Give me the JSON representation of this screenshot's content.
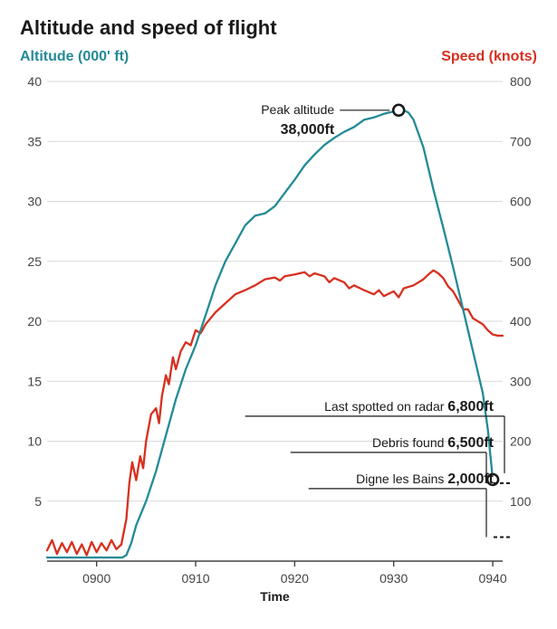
{
  "title": "Altitude and speed of flight",
  "axes": {
    "left": {
      "label": "Altitude (000' ft)",
      "color": "#238a97",
      "range": [
        0,
        40
      ],
      "ticks": [
        5,
        10,
        15,
        20,
        25,
        30,
        35,
        40
      ]
    },
    "right": {
      "label": "Speed (knots)",
      "color": "#d7301f",
      "range": [
        0,
        800
      ],
      "ticks": [
        100,
        200,
        300,
        400,
        500,
        600,
        700,
        800
      ]
    },
    "x": {
      "label": "Time",
      "range": [
        895,
        941
      ],
      "ticks": [
        900,
        910,
        920,
        930,
        940
      ],
      "tick_labels": [
        "0900",
        "0910",
        "0920",
        "0930",
        "0940"
      ]
    }
  },
  "grid_color": "#d9d9d9",
  "zero_line_color": "#444444",
  "background_color": "#ffffff",
  "line_width": 2.3,
  "series": {
    "altitude": {
      "color": "#238a97",
      "data": [
        [
          895,
          0.3
        ],
        [
          896,
          0.3
        ],
        [
          897,
          0.3
        ],
        [
          898,
          0.3
        ],
        [
          899,
          0.3
        ],
        [
          900,
          0.3
        ],
        [
          901,
          0.3
        ],
        [
          902,
          0.3
        ],
        [
          902.6,
          0.3
        ],
        [
          903,
          0.5
        ],
        [
          903.5,
          1.5
        ],
        [
          904,
          3.0
        ],
        [
          905,
          5.0
        ],
        [
          906,
          7.5
        ],
        [
          907,
          10.5
        ],
        [
          908,
          13.5
        ],
        [
          909,
          16.0
        ],
        [
          910,
          18.0
        ],
        [
          911,
          20.5
        ],
        [
          912,
          23.0
        ],
        [
          913,
          25.0
        ],
        [
          914,
          26.5
        ],
        [
          915,
          28.0
        ],
        [
          916,
          28.8
        ],
        [
          917,
          29.0
        ],
        [
          918,
          29.6
        ],
        [
          919,
          30.7
        ],
        [
          920,
          31.8
        ],
        [
          921,
          33.0
        ],
        [
          922,
          33.9
        ],
        [
          923,
          34.7
        ],
        [
          924,
          35.3
        ],
        [
          925,
          35.8
        ],
        [
          926,
          36.2
        ],
        [
          927,
          36.8
        ],
        [
          928,
          37.0
        ],
        [
          929,
          37.3
        ],
        [
          930,
          37.5
        ],
        [
          930.5,
          37.6
        ],
        [
          931,
          37.6
        ],
        [
          931.5,
          37.4
        ],
        [
          932,
          36.8
        ],
        [
          933,
          34.5
        ],
        [
          934,
          31.0
        ],
        [
          935,
          27.8
        ],
        [
          936,
          24.5
        ],
        [
          937,
          21.0
        ],
        [
          938,
          17.5
        ],
        [
          939,
          14.0
        ],
        [
          939.5,
          11.0
        ],
        [
          940,
          6.8
        ]
      ]
    },
    "speed": {
      "color": "#d7301f",
      "data": [
        [
          895,
          18
        ],
        [
          895.5,
          35
        ],
        [
          896,
          12
        ],
        [
          896.5,
          30
        ],
        [
          897,
          15
        ],
        [
          897.5,
          32
        ],
        [
          898,
          12
        ],
        [
          898.5,
          28
        ],
        [
          899,
          10
        ],
        [
          899.5,
          32
        ],
        [
          900,
          15
        ],
        [
          900.5,
          30
        ],
        [
          901,
          18
        ],
        [
          901.5,
          35
        ],
        [
          902,
          20
        ],
        [
          902.5,
          28
        ],
        [
          903,
          70
        ],
        [
          903.3,
          130
        ],
        [
          903.6,
          165
        ],
        [
          904,
          135
        ],
        [
          904.4,
          175
        ],
        [
          904.7,
          155
        ],
        [
          905,
          200
        ],
        [
          905.5,
          245
        ],
        [
          906,
          255
        ],
        [
          906.3,
          230
        ],
        [
          906.6,
          275
        ],
        [
          907,
          310
        ],
        [
          907.3,
          295
        ],
        [
          907.7,
          340
        ],
        [
          908,
          320
        ],
        [
          908.5,
          350
        ],
        [
          909,
          365
        ],
        [
          909.5,
          360
        ],
        [
          910,
          385
        ],
        [
          910.5,
          380
        ],
        [
          911,
          395
        ],
        [
          912,
          415
        ],
        [
          913,
          430
        ],
        [
          914,
          445
        ],
        [
          915,
          452
        ],
        [
          916,
          460
        ],
        [
          917,
          470
        ],
        [
          918,
          473
        ],
        [
          918.5,
          468
        ],
        [
          919,
          475
        ],
        [
          920,
          478
        ],
        [
          921,
          482
        ],
        [
          921.5,
          475
        ],
        [
          922,
          480
        ],
        [
          923,
          475
        ],
        [
          923.5,
          465
        ],
        [
          924,
          472
        ],
        [
          925,
          465
        ],
        [
          925.5,
          455
        ],
        [
          926,
          460
        ],
        [
          927,
          452
        ],
        [
          928,
          445
        ],
        [
          928.5,
          452
        ],
        [
          929,
          442
        ],
        [
          930,
          450
        ],
        [
          930.5,
          440
        ],
        [
          931,
          455
        ],
        [
          932,
          460
        ],
        [
          933,
          470
        ],
        [
          933.5,
          478
        ],
        [
          934,
          485
        ],
        [
          934.5,
          480
        ],
        [
          935,
          472
        ],
        [
          935.5,
          458
        ],
        [
          936,
          450
        ],
        [
          936.5,
          435
        ],
        [
          937,
          420
        ],
        [
          937.5,
          420
        ],
        [
          938,
          405
        ],
        [
          938.5,
          400
        ],
        [
          939,
          395
        ],
        [
          939.5,
          385
        ],
        [
          940,
          378
        ],
        [
          940.5,
          376
        ],
        [
          941,
          376
        ]
      ]
    }
  },
  "peak": {
    "x": 930.5,
    "y_alt": 37.6,
    "marker_r": 6,
    "label_line1": "Peak altitude",
    "label_line2": "38,000ft"
  },
  "radar": {
    "x": 940,
    "y_alt": 6.8,
    "marker_r": 6,
    "label": "Last spotted on radar",
    "value": "6,800ft"
  },
  "debris": {
    "y_alt": 6.5,
    "label": "Debris found",
    "value": "6,500ft"
  },
  "digne": {
    "y_alt": 2.0,
    "label": "Digne les Bains",
    "value": "2,000ft"
  }
}
